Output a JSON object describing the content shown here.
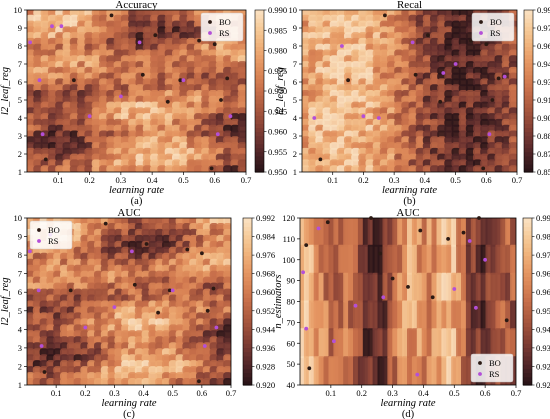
{
  "chart_data": [
    {
      "type": "heatmap",
      "title": "Accuracy",
      "caption": "(a)",
      "xlabel": "learning rate",
      "ylabel": "l2_leaf_reg",
      "xlim": [
        0,
        0.7
      ],
      "ylim": [
        1,
        10
      ],
      "xticks": [
        "0.1",
        "0.2",
        "0.3",
        "0.4",
        "0.5",
        "0.6",
        "0.7"
      ],
      "yticks": [
        "1",
        "2",
        "3",
        "4",
        "5",
        "6",
        "7",
        "8",
        "9",
        "10"
      ],
      "colorbar": {
        "range": [
          0.95,
          0.99
        ],
        "ticks": [
          "0.950",
          "0.955",
          "0.960",
          "0.965",
          "0.970",
          "0.975",
          "0.980",
          "0.985",
          "0.990"
        ]
      },
      "legend": {
        "position": "top-right",
        "entries": [
          "BO",
          "RS"
        ]
      },
      "grid": false,
      "series": [
        {
          "name": "BO",
          "points": [
            [
              0.06,
              1.7
            ],
            [
              0.27,
              9.7
            ],
            [
              0.15,
              6.1
            ],
            [
              0.37,
              6.4
            ],
            [
              0.41,
              8.6
            ],
            [
              0.45,
              4.9
            ],
            [
              0.49,
              6.1
            ],
            [
              0.55,
              8.3
            ],
            [
              0.6,
              8.1
            ],
            [
              0.62,
              5.0
            ],
            [
              0.64,
              6.2
            ],
            [
              0.59,
              1.2
            ]
          ]
        },
        {
          "name": "RS",
          "points": [
            [
              0.01,
              8.2
            ],
            [
              0.04,
              6.1
            ],
            [
              0.05,
              3.1
            ],
            [
              0.08,
              9.1
            ],
            [
              0.11,
              9.1
            ],
            [
              0.2,
              4.1
            ],
            [
              0.3,
              5.2
            ],
            [
              0.36,
              8.2
            ],
            [
              0.5,
              6.1
            ],
            [
              0.61,
              3.1
            ],
            [
              0.65,
              4.1
            ]
          ]
        }
      ]
    },
    {
      "type": "heatmap",
      "title": "Recal",
      "caption": "(b)",
      "xlabel": "learning rate",
      "ylabel": "l2_leaf_reg",
      "xlim": [
        0,
        0.7
      ],
      "ylim": [
        1,
        10
      ],
      "xticks": [
        "0.1",
        "0.2",
        "0.3",
        "0.4",
        "0.5",
        "0.6",
        "0.7"
      ],
      "yticks": [
        "1",
        "2",
        "3",
        "4",
        "5",
        "6",
        "7",
        "8",
        "9",
        "10"
      ],
      "colorbar": {
        "range": [
          0.855,
          0.99
        ],
        "ticks": [
          "0.855",
          "0.870",
          "0.885",
          "0.900",
          "0.915",
          "0.930",
          "0.945",
          "0.960",
          "0.975",
          "0.990"
        ]
      },
      "legend": {
        "position": "top-right",
        "entries": [
          "BO",
          "RS"
        ]
      },
      "grid": false,
      "series": [
        {
          "name": "BO",
          "points": [
            [
              0.06,
              1.7
            ],
            [
              0.15,
              6.1
            ],
            [
              0.27,
              9.7
            ],
            [
              0.37,
              6.4
            ],
            [
              0.41,
              8.6
            ],
            [
              0.45,
              4.9
            ],
            [
              0.55,
              8.3
            ],
            [
              0.6,
              8.1
            ],
            [
              0.62,
              5.0
            ],
            [
              0.64,
              6.2
            ],
            [
              0.59,
              1.2
            ]
          ]
        },
        {
          "name": "RS",
          "points": [
            [
              0.04,
              4.0
            ],
            [
              0.13,
              8.0
            ],
            [
              0.2,
              4.1
            ],
            [
              0.25,
              4.0
            ],
            [
              0.36,
              8.2
            ],
            [
              0.46,
              6.5
            ],
            [
              0.5,
              7.0
            ],
            [
              0.61,
              3.1
            ],
            [
              0.66,
              6.3
            ]
          ]
        }
      ]
    },
    {
      "type": "heatmap",
      "title": "AUC",
      "caption": "(c)",
      "xlabel": "learning rate",
      "ylabel": "l2_leaf_reg",
      "xlim": [
        0,
        0.7
      ],
      "ylim": [
        1,
        10
      ],
      "xticks": [
        "0.1",
        "0.2",
        "0.3",
        "0.4",
        "0.5",
        "0.6",
        "0.7"
      ],
      "yticks": [
        "1",
        "2",
        "3",
        "4",
        "5",
        "6",
        "7",
        "8",
        "9",
        "10"
      ],
      "colorbar": {
        "range": [
          0.92,
          0.992
        ],
        "ticks": [
          "0.920",
          "0.928",
          "0.936",
          "0.944",
          "0.952",
          "0.960",
          "0.968",
          "0.976",
          "0.984",
          "0.992"
        ]
      },
      "legend": {
        "position": "top-left",
        "entries": [
          "BO",
          "RS"
        ]
      },
      "grid": false,
      "series": [
        {
          "name": "BO",
          "points": [
            [
              0.06,
              1.7
            ],
            [
              0.15,
              6.1
            ],
            [
              0.27,
              9.7
            ],
            [
              0.37,
              6.4
            ],
            [
              0.41,
              8.6
            ],
            [
              0.45,
              4.9
            ],
            [
              0.49,
              6.1
            ],
            [
              0.55,
              8.3
            ],
            [
              0.6,
              8.1
            ],
            [
              0.62,
              5.0
            ],
            [
              0.64,
              6.2
            ],
            [
              0.59,
              1.2
            ]
          ]
        },
        {
          "name": "RS",
          "points": [
            [
              0.01,
              8.2
            ],
            [
              0.04,
              6.1
            ],
            [
              0.05,
              3.1
            ],
            [
              0.08,
              9.1
            ],
            [
              0.2,
              4.1
            ],
            [
              0.3,
              5.2
            ],
            [
              0.36,
              8.2
            ],
            [
              0.5,
              6.1
            ],
            [
              0.61,
              3.1
            ],
            [
              0.65,
              4.1
            ]
          ]
        }
      ]
    },
    {
      "type": "heatmap",
      "title": "AUC",
      "caption": "(d)",
      "xlabel": "learning rate",
      "ylabel": "n_estimators",
      "xlim": [
        0,
        0.7
      ],
      "ylim": [
        40,
        120
      ],
      "xticks": [
        "0.1",
        "0.2",
        "0.3",
        "0.4",
        "0.5",
        "0.6",
        "0.7"
      ],
      "yticks": [
        "40",
        "50",
        "60",
        "70",
        "80",
        "90",
        "100",
        "110",
        "120"
      ],
      "colorbar": {
        "range": [
          0.92,
          0.992
        ],
        "ticks": [
          "0.920",
          "0.928",
          "0.936",
          "0.944",
          "0.952",
          "0.960",
          "0.968",
          "0.976",
          "0.984",
          "0.992"
        ]
      },
      "legend": {
        "position": "bottom-right",
        "entries": [
          "BO",
          "RS"
        ]
      },
      "grid": false,
      "series": [
        {
          "name": "BO",
          "points": [
            [
              0.02,
              107
            ],
            [
              0.03,
              48
            ],
            [
              0.09,
              118
            ],
            [
              0.23,
              120
            ],
            [
              0.26,
              103
            ],
            [
              0.3,
              91
            ],
            [
              0.35,
              87
            ],
            [
              0.39,
              114
            ],
            [
              0.43,
              82
            ],
            [
              0.48,
              110
            ],
            [
              0.53,
              113
            ],
            [
              0.58,
              120
            ],
            [
              0.67,
              71
            ]
          ]
        },
        {
          "name": "RS",
          "points": [
            [
              0.01,
              94
            ],
            [
              0.02,
              67
            ],
            [
              0.06,
              115
            ],
            [
              0.11,
              61
            ],
            [
              0.18,
              78
            ],
            [
              0.27,
              82
            ],
            [
              0.38,
              45
            ],
            [
              0.5,
              86
            ],
            [
              0.55,
              109
            ],
            [
              0.57,
              77
            ],
            [
              0.6,
              100
            ]
          ]
        }
      ]
    }
  ]
}
